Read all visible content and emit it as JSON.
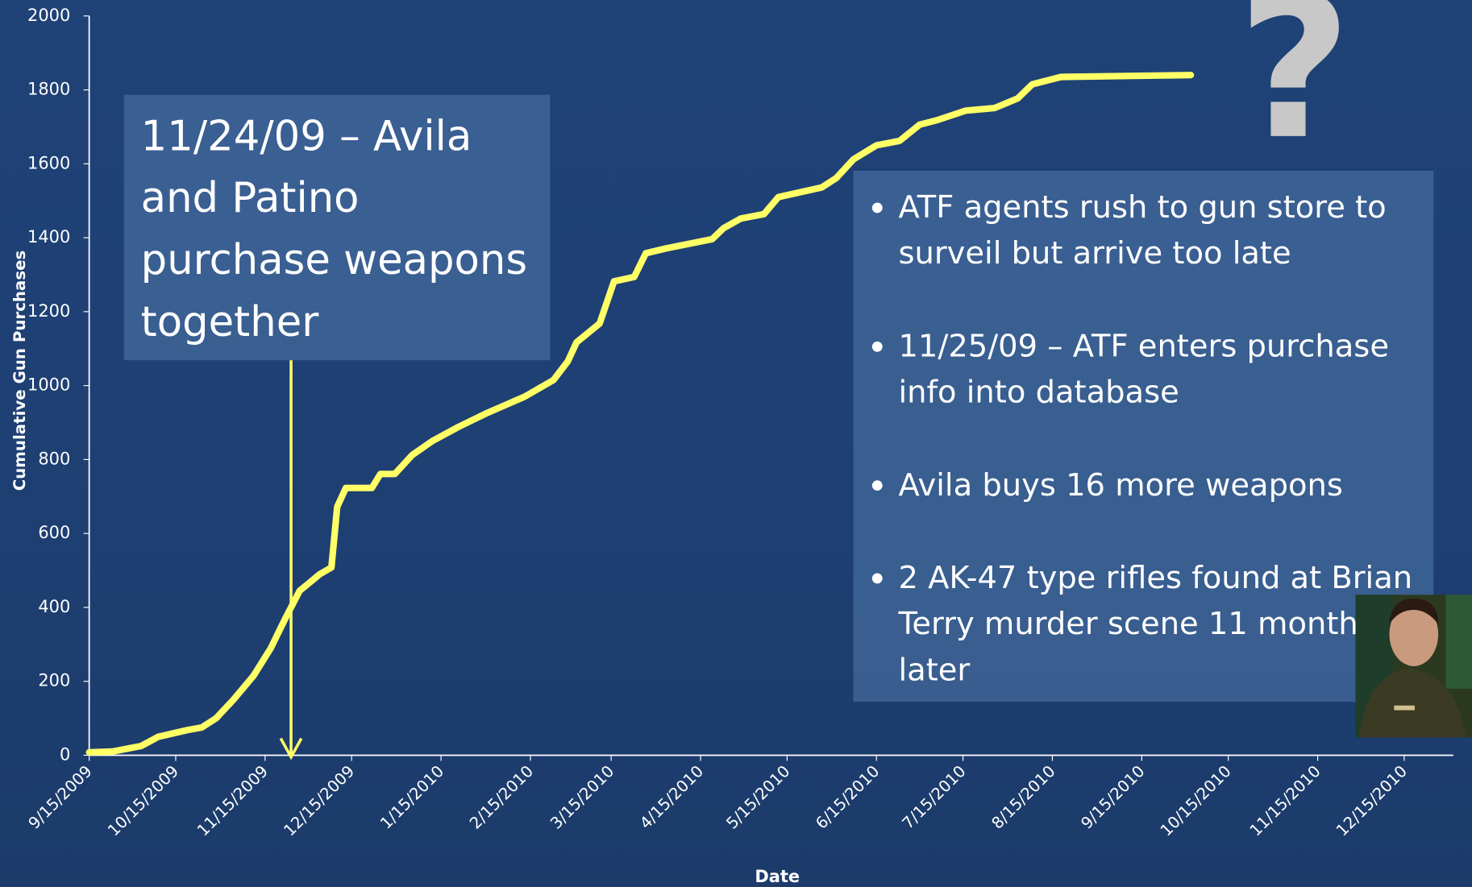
{
  "chart_data": {
    "type": "line",
    "xlabel": "Date",
    "ylabel": "Cumulative Gun Purchases",
    "x": [
      "9/15/2009",
      "9/23/2009",
      "10/3/2009",
      "10/9/2009",
      "10/19/2009",
      "10/24/2009",
      "10/29/2009",
      "11/4/2009",
      "11/11/2009",
      "11/17/2009",
      "11/22/2009",
      "11/27/2009",
      "12/4/2009",
      "12/8/2009",
      "12/10/2009",
      "12/13/2009",
      "12/22/2009",
      "12/25/2009",
      "12/30/2009",
      "1/5/2010",
      "1/12/2010",
      "1/21/2010",
      "1/31/2010",
      "2/13/2010",
      "2/23/2010",
      "2/28/2010",
      "3/3/2010",
      "3/11/2010",
      "3/16/2010",
      "3/23/2010",
      "3/27/2010",
      "4/3/2010",
      "4/19/2010",
      "4/23/2010",
      "4/29/2010",
      "5/7/2010",
      "5/12/2010",
      "5/27/2010",
      "6/1/2010",
      "6/7/2010",
      "6/15/2010",
      "6/23/2010",
      "6/30/2010",
      "7/6/2010",
      "7/16/2010",
      "7/26/2010",
      "8/3/2010",
      "8/8/2010",
      "8/18/2010",
      "10/2/2010"
    ],
    "series": [
      {
        "name": "Cumulative Gun Purchases",
        "color": "#ffff66",
        "values": [
          8,
          10,
          25,
          50,
          68,
          75,
          100,
          150,
          215,
          290,
          370,
          445,
          490,
          508,
          672,
          723,
          723,
          761,
          761,
          812,
          850,
          888,
          926,
          970,
          1015,
          1066,
          1117,
          1168,
          1282,
          1294,
          1358,
          1371,
          1396,
          1426,
          1452,
          1464,
          1510,
          1536,
          1561,
          1612,
          1650,
          1662,
          1706,
          1718,
          1744,
          1751,
          1777,
          1815,
          1835,
          1840
        ]
      }
    ],
    "xlim": [
      "9/15/2009",
      "1/1/2011"
    ],
    "xticks": [
      "9/15/2009",
      "10/15/2009",
      "11/15/2009",
      "12/15/2009",
      "1/15/2010",
      "2/15/2010",
      "3/15/2010",
      "4/15/2010",
      "5/15/2010",
      "6/15/2010",
      "7/15/2010",
      "8/15/2010",
      "9/15/2010",
      "10/15/2010",
      "11/15/2010",
      "12/15/2010"
    ],
    "ylim": [
      0,
      2000
    ],
    "yticks": [
      0,
      200,
      400,
      600,
      800,
      1000,
      1200,
      1400,
      1600,
      1800,
      2000
    ],
    "grid": false,
    "annotations": {
      "callout": "11/24/09 – Avila and Patino purchase weapons together",
      "callout_date": "11/24/2009",
      "question": "?",
      "bullets": [
        "ATF agents rush to gun store to surveil but arrive too late",
        "11/25/09 – ATF enters purchase info into database",
        "Avila buys 16 more weapons",
        "2 AK-47 type rifles found at Brian Terry murder scene 11 months later"
      ]
    }
  }
}
